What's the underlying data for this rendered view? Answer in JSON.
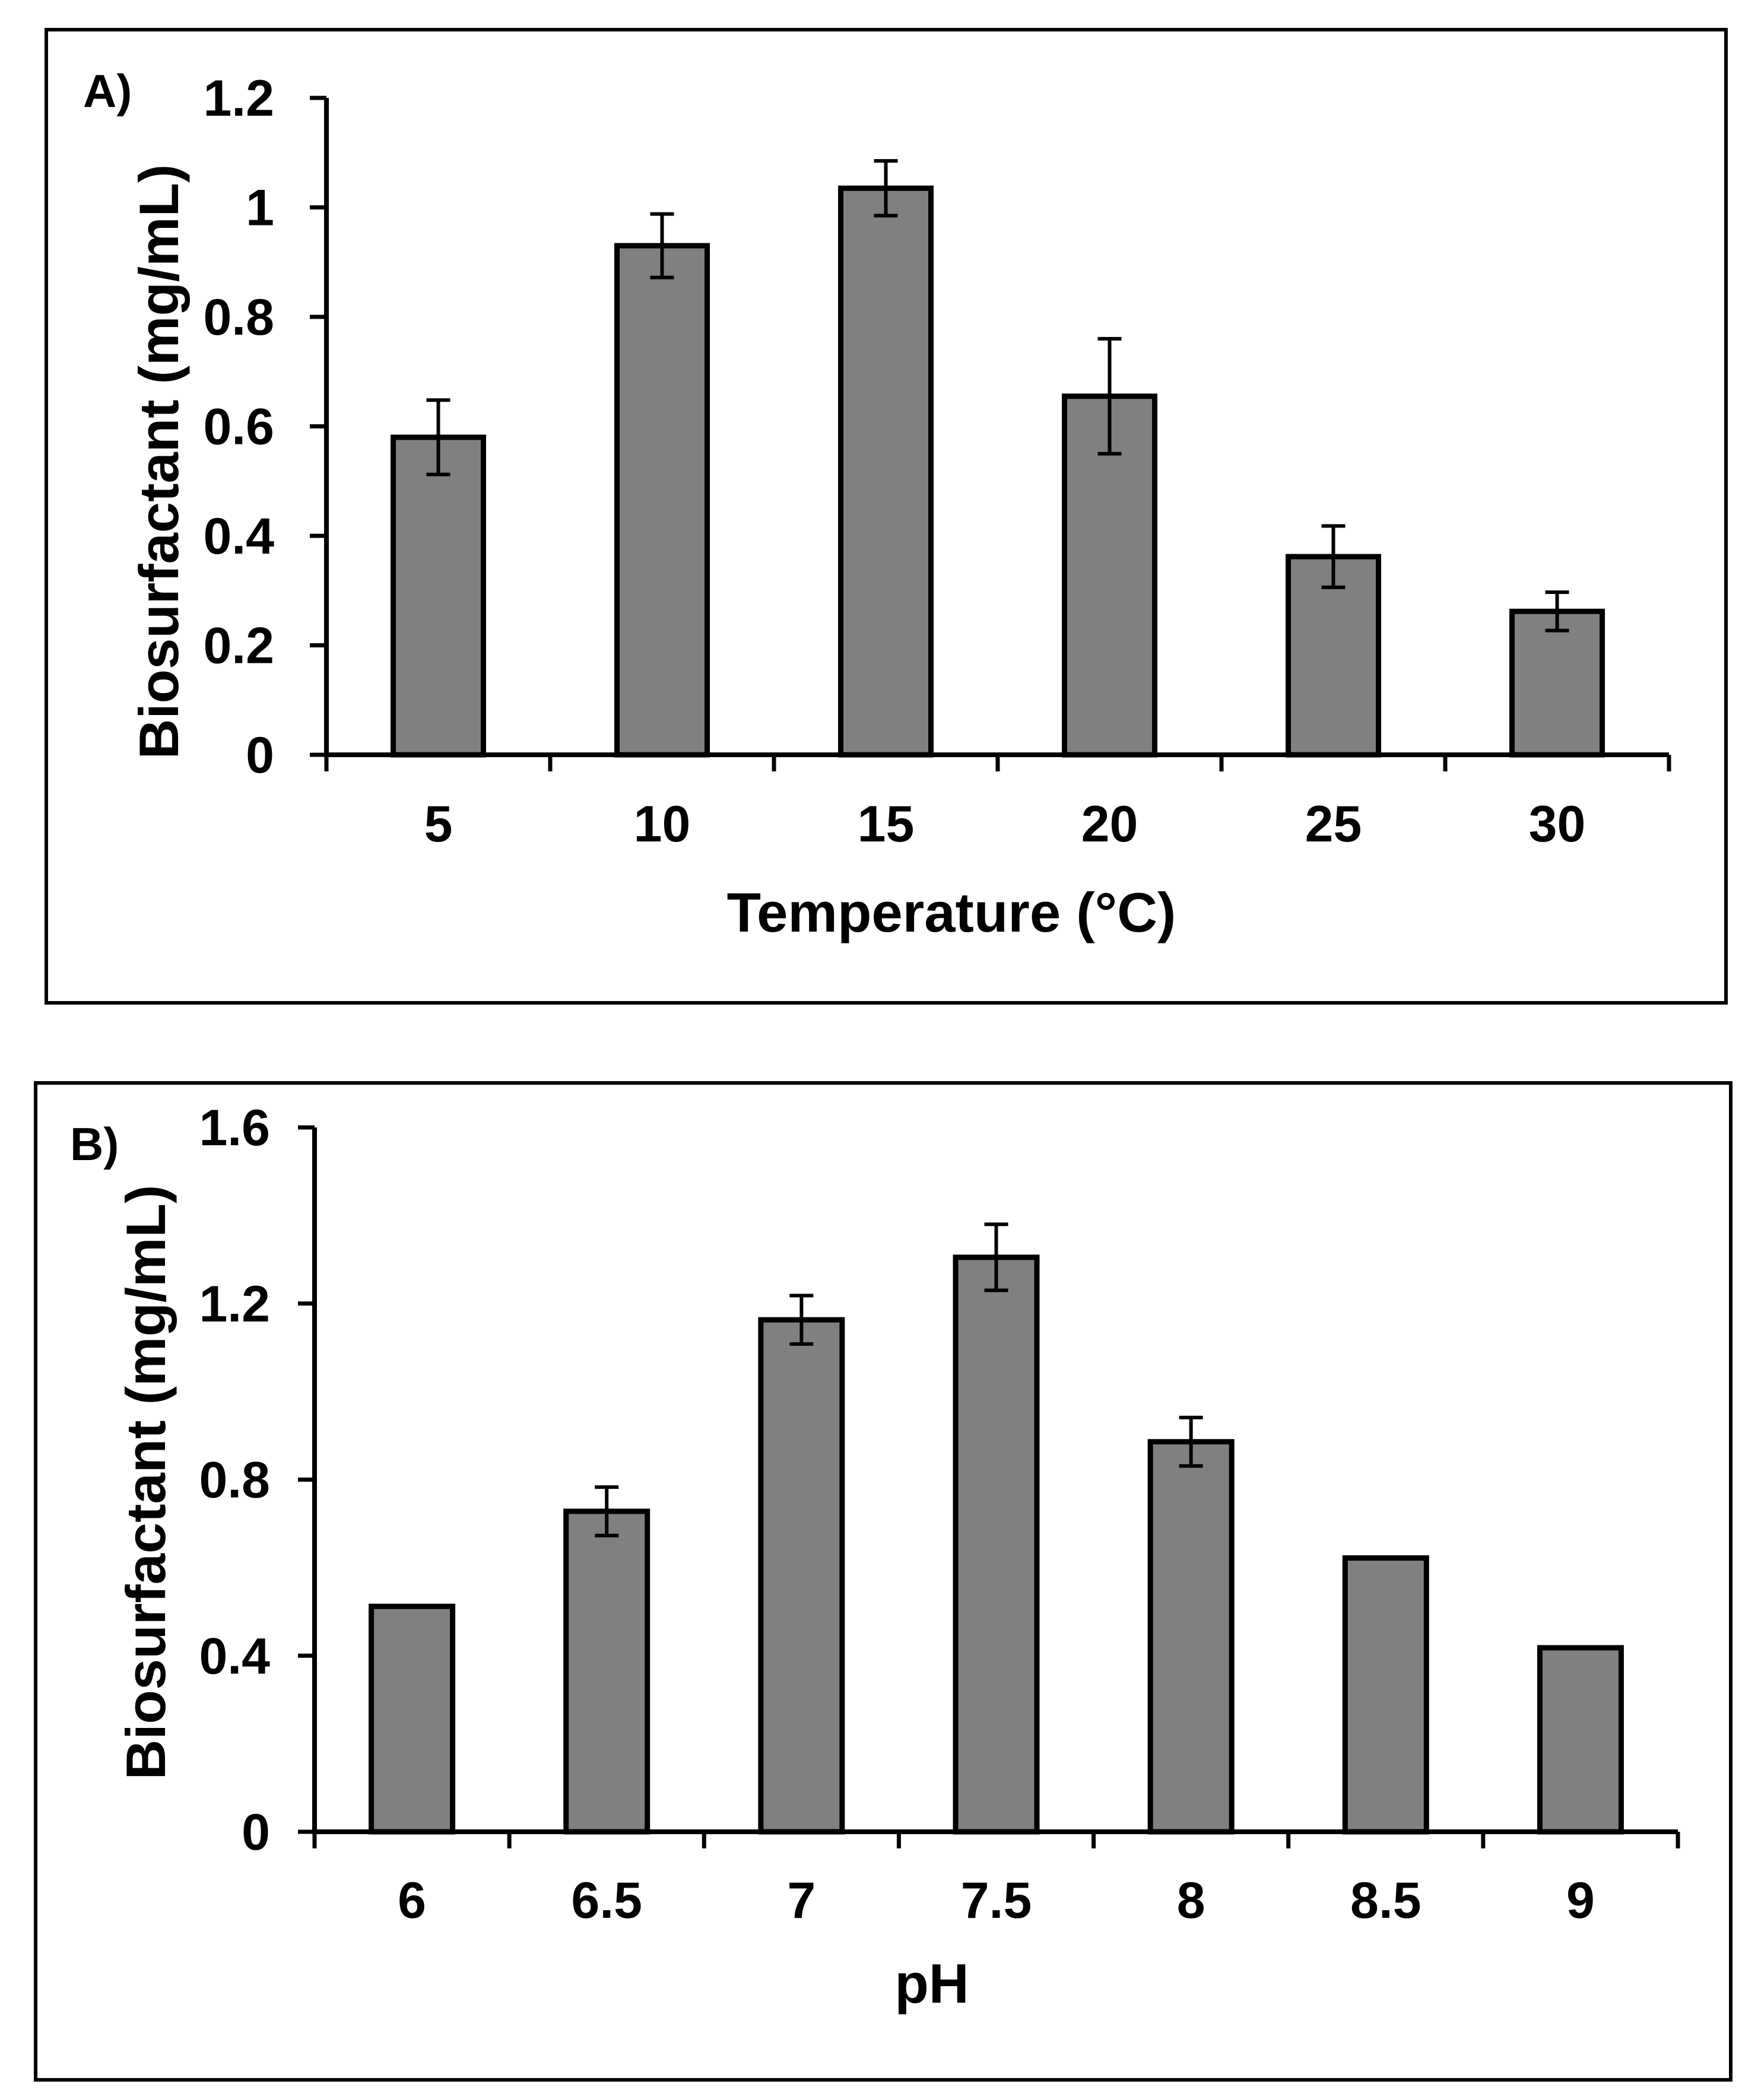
{
  "colors": {
    "bar_fill": "#808080",
    "axis": "#000000",
    "background": "#ffffff"
  },
  "chart_data": [
    {
      "type": "bar",
      "panel_label": "A)",
      "title": "",
      "xlabel": "Temperature (°C)",
      "ylabel": "Biosurfactant (mg/mL)",
      "categories": [
        "5",
        "10",
        "15",
        "20",
        "25",
        "30"
      ],
      "values": [
        0.58,
        0.93,
        1.035,
        0.655,
        0.362,
        0.262
      ],
      "errors": [
        0.068,
        0.058,
        0.05,
        0.105,
        0.056,
        0.035
      ],
      "ylim": [
        0,
        1.2
      ],
      "yticks": [
        0,
        0.2,
        0.4,
        0.6,
        0.8,
        1,
        1.2
      ],
      "ytick_labels": [
        "0",
        "0.2",
        "0.4",
        "0.6",
        "0.8",
        "1",
        "1.2"
      ],
      "grid": false,
      "legend": "none"
    },
    {
      "type": "bar",
      "panel_label": "B)",
      "title": "",
      "xlabel": "pH",
      "ylabel": "Biosurfactant (mg/mL)",
      "categories": [
        "6",
        "6.5",
        "7",
        "7.5",
        "8",
        "8.5",
        "9"
      ],
      "values": [
        0.512,
        0.728,
        1.163,
        1.305,
        0.886,
        0.622,
        0.418
      ],
      "errors": [
        0,
        0.055,
        0.055,
        0.075,
        0.055,
        0,
        0
      ],
      "ylim": [
        0,
        1.6
      ],
      "yticks": [
        0,
        0.4,
        0.8,
        1.2,
        1.6
      ],
      "ytick_labels": [
        "0",
        "0.4",
        "0.8",
        "1.2",
        "1.6"
      ],
      "grid": false,
      "legend": "none"
    }
  ]
}
